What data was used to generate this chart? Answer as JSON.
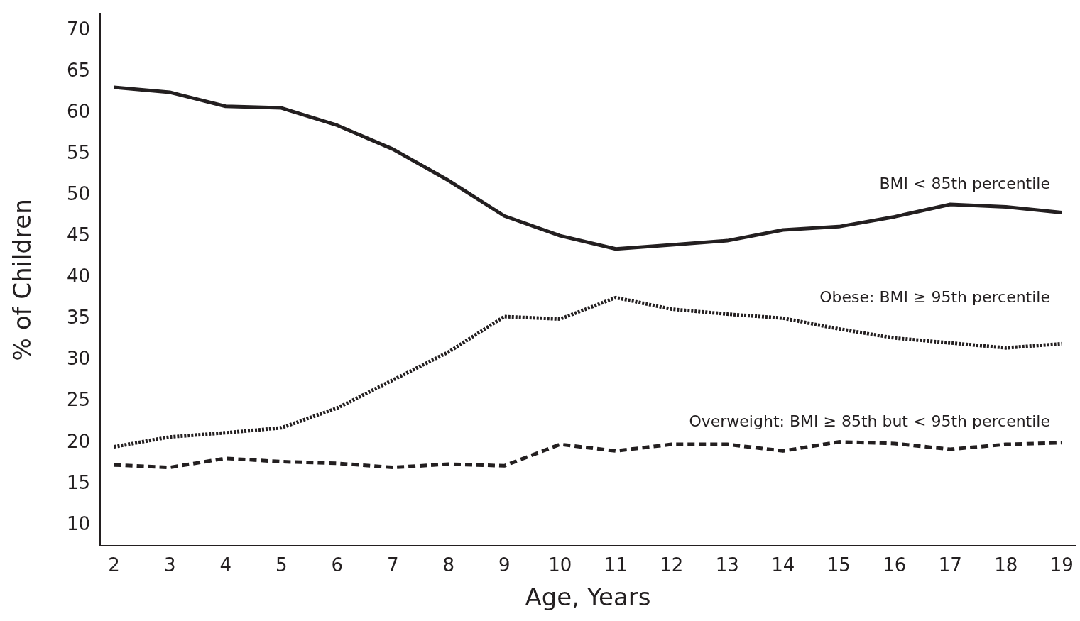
{
  "chart_data": {
    "type": "line",
    "xlabel": "Age, Years",
    "ylabel": "% of Children",
    "x": [
      2,
      3,
      4,
      5,
      6,
      7,
      8,
      9,
      10,
      11,
      12,
      13,
      14,
      15,
      16,
      17,
      18,
      19
    ],
    "xlim": [
      1.75,
      19.25
    ],
    "xticks": [
      2,
      3,
      4,
      5,
      6,
      7,
      8,
      9,
      10,
      11,
      12,
      13,
      14,
      15,
      16,
      17,
      18,
      19
    ],
    "ylim": [
      7.5,
      72
    ],
    "yticks": [
      10,
      15,
      20,
      25,
      30,
      35,
      40,
      45,
      50,
      55,
      60,
      65,
      70
    ],
    "grid": false,
    "legend": false,
    "marker": "none",
    "series": [
      {
        "name": "BMI < 85th percentile",
        "color": "#231f20",
        "line_style": "solid",
        "values": [
          63.1,
          62.5,
          60.8,
          60.6,
          58.5,
          55.6,
          51.8,
          47.5,
          45.1,
          43.5,
          44.0,
          44.5,
          45.8,
          46.2,
          47.4,
          48.9,
          48.6,
          47.9
        ]
      },
      {
        "name": "Obese: BMI ≥ 95th percentile",
        "color": "#231f20",
        "line_style": "dotted",
        "values": [
          19.5,
          20.7,
          21.2,
          21.8,
          24.2,
          27.6,
          31.0,
          35.3,
          35.0,
          37.6,
          36.2,
          35.6,
          35.1,
          33.8,
          32.7,
          32.1,
          31.5,
          32.0
        ]
      },
      {
        "name": "Overweight: BMI ≥ 85th but < 95th percentile",
        "color": "#231f20",
        "line_style": "dashed",
        "values": [
          17.3,
          17.0,
          18.1,
          17.7,
          17.5,
          17.0,
          17.4,
          17.2,
          19.8,
          19.0,
          19.8,
          19.8,
          19.0,
          20.1,
          19.9,
          19.2,
          19.8,
          20.0
        ]
      }
    ]
  }
}
